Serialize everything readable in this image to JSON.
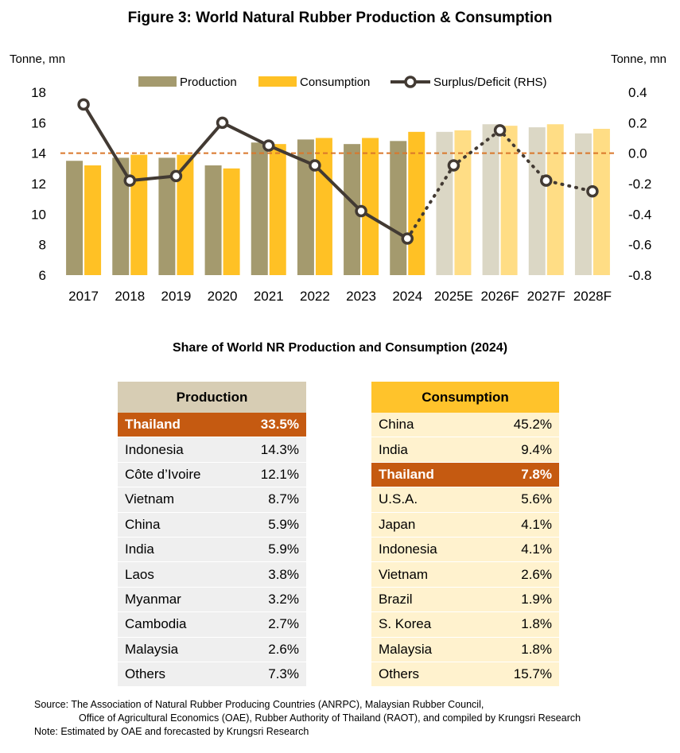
{
  "title": "Figure 3: World Natural Rubber Production & Consumption",
  "chart_data": {
    "type": "bar",
    "title": "Figure 3: World Natural Rubber Production & Consumption",
    "left_axis_label": "Tonne, mn",
    "right_axis_label": "Tonne, mn",
    "categories": [
      "2017",
      "2018",
      "2019",
      "2020",
      "2021",
      "2022",
      "2023",
      "2024",
      "2025E",
      "2026F",
      "2027F",
      "2028F"
    ],
    "forecast_start_index": 8,
    "ylim": [
      6,
      18
    ],
    "yticks": [
      6,
      8,
      10,
      12,
      14,
      16,
      18
    ],
    "y2lim": [
      -0.8,
      0.4
    ],
    "y2ticks": [
      "0.4",
      "0.2",
      "0.0",
      "-0.2",
      "-0.4",
      "-0.6",
      "-0.8"
    ],
    "y2tick_values": [
      0.4,
      0.2,
      0.0,
      -0.2,
      -0.4,
      -0.6,
      -0.8
    ],
    "series": [
      {
        "name": "Production",
        "type": "bar",
        "axis": "left",
        "color": "#a49a6e",
        "forecast_color": "#dbd7c5",
        "values": [
          13.5,
          13.7,
          13.7,
          13.2,
          14.7,
          14.9,
          14.6,
          14.8,
          15.4,
          15.9,
          15.7,
          15.3
        ]
      },
      {
        "name": "Consumption",
        "type": "bar",
        "axis": "left",
        "color": "#ffc125",
        "forecast_color": "#ffdd85",
        "values": [
          13.2,
          13.9,
          13.9,
          13.0,
          14.6,
          15.0,
          15.0,
          15.4,
          15.5,
          15.8,
          15.9,
          15.6
        ]
      },
      {
        "name": "Surplus/Deficit (RHS)",
        "type": "line",
        "axis": "right",
        "color": "#423a33",
        "values": [
          0.32,
          -0.18,
          -0.15,
          0.2,
          0.05,
          -0.08,
          -0.38,
          -0.56,
          -0.08,
          0.15,
          -0.18,
          -0.25
        ]
      }
    ],
    "zero_reference_line_color": "#d9772b"
  },
  "share": {
    "title": "Share of World NR Production and Consumption (2024)",
    "production": {
      "header": "Production",
      "rows": [
        {
          "country": "Thailand",
          "value": "33.5%",
          "highlight": true
        },
        {
          "country": "Indonesia",
          "value": "14.3%"
        },
        {
          "country": "Côte d’Ivoire",
          "value": "12.1%"
        },
        {
          "country": "Vietnam",
          "value": "8.7%"
        },
        {
          "country": "China",
          "value": "5.9%"
        },
        {
          "country": "India",
          "value": "5.9%"
        },
        {
          "country": "Laos",
          "value": "3.8%"
        },
        {
          "country": "Myanmar",
          "value": "3.2%"
        },
        {
          "country": "Cambodia",
          "value": "2.7%"
        },
        {
          "country": "Malaysia",
          "value": "2.6%"
        },
        {
          "country": "Others",
          "value": "7.3%"
        }
      ]
    },
    "consumption": {
      "header": "Consumption",
      "rows": [
        {
          "country": "China",
          "value": "45.2%"
        },
        {
          "country": "India",
          "value": "9.4%"
        },
        {
          "country": "Thailand",
          "value": "7.8%",
          "highlight": true
        },
        {
          "country": "U.S.A.",
          "value": "5.6%"
        },
        {
          "country": "Japan",
          "value": "4.1%"
        },
        {
          "country": "Indonesia",
          "value": "4.1%"
        },
        {
          "country": "Vietnam",
          "value": "2.6%"
        },
        {
          "country": "Brazil",
          "value": "1.9%"
        },
        {
          "country": "S. Korea",
          "value": "1.8%"
        },
        {
          "country": "Malaysia",
          "value": "1.8%"
        },
        {
          "country": "Others",
          "value": "15.7%"
        }
      ]
    }
  },
  "source": {
    "line1": "Source:   The Association of Natural Rubber Producing Countries (ANRPC), Malaysian Rubber Council,",
    "line2": "Office of Agricultural Economics (OAE), Rubber Authority of Thailand (RAOT), and compiled by Krungsri Research",
    "note": "Note: Estimated by OAE and forecasted by Krungsri Research"
  }
}
